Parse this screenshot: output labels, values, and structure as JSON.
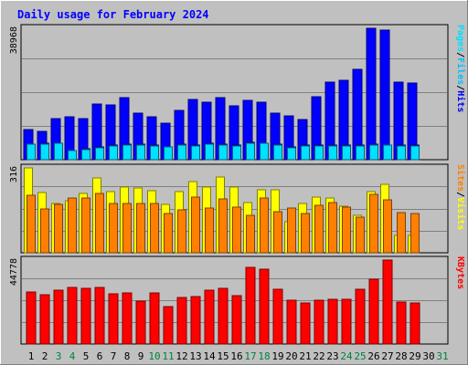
{
  "chart_data": {
    "type": "bar",
    "title": "Daily usage for February 2024",
    "x": [
      "1",
      "2",
      "3",
      "4",
      "5",
      "6",
      "7",
      "8",
      "9",
      "10",
      "11",
      "12",
      "13",
      "14",
      "15",
      "16",
      "17",
      "18",
      "19",
      "20",
      "21",
      "22",
      "23",
      "24",
      "25",
      "26",
      "27",
      "28",
      "29",
      "30",
      "31"
    ],
    "weekend_days": [
      "3",
      "4",
      "10",
      "11",
      "17",
      "18",
      "24",
      "25",
      "31"
    ],
    "panels": [
      {
        "max_label": "38968",
        "ylim": [
          0,
          38968
        ],
        "right_label": [
          "Pages",
          "/",
          "Files",
          "/",
          "Hits"
        ],
        "series": [
          {
            "name": "Hits",
            "color": "#0000ff",
            "values": [
              9000,
              8400,
              12100,
              12700,
              12300,
              16500,
              16300,
              18500,
              13800,
              12800,
              10700,
              14500,
              17900,
              17000,
              18400,
              15900,
              17500,
              17000,
              13800,
              13100,
              11800,
              18700,
              23100,
              23500,
              26700,
              38968,
              38500,
              23100,
              22800,
              0,
              0
            ]
          },
          {
            "name": "Files",
            "color": "#00c0ff",
            "values": [
              4700,
              4800,
              5000,
              2800,
              3300,
              3800,
              4300,
              4600,
              4600,
              4200,
              3900,
              4500,
              4300,
              4900,
              4500,
              4300,
              5100,
              5000,
              4600,
              3800,
              4300,
              4300,
              4300,
              4300,
              4300,
              4500,
              4400,
              4200,
              4300,
              0,
              0
            ]
          },
          {
            "name": "Pages",
            "color": "#00e0ff",
            "values": [
              4500,
              4500,
              4800,
              2600,
              3100,
              3600,
              4100,
              4400,
              4400,
              4000,
              3700,
              4300,
              4100,
              4700,
              4300,
              4100,
              4900,
              4800,
              4400,
              3600,
              4100,
              4100,
              4100,
              4100,
              4100,
              4300,
              4200,
              4000,
              4100,
              0,
              0
            ]
          }
        ]
      },
      {
        "max_label": "316",
        "ylim": [
          0,
          316
        ],
        "right_label": [
          "Sites",
          "/",
          "Visits"
        ],
        "series": [
          {
            "name": "Visits",
            "color": "#ffff00",
            "values": [
              316,
              223,
              183,
              193,
              221,
              280,
              227,
              245,
              240,
              231,
              180,
              226,
              266,
              244,
              282,
              245,
              186,
              235,
              235,
              115,
              183,
              206,
              203,
              173,
              139,
              226,
              254,
              65,
              65,
              0,
              0
            ]
          },
          {
            "name": "Sites",
            "color": "#ff8000",
            "values": [
              215,
              163,
              180,
              203,
              205,
              220,
              183,
              182,
              183,
              185,
              145,
              160,
              207,
              165,
              200,
              169,
              140,
              204,
              154,
              167,
              145,
              175,
              187,
              170,
              133,
              216,
              196,
              148,
              146,
              0,
              0
            ]
          }
        ]
      },
      {
        "max_label": "44778",
        "ylim": [
          0,
          44778
        ],
        "right_label": [
          "KBytes"
        ],
        "series": [
          {
            "name": "KBytes",
            "color": "#ff0000",
            "values": [
              27800,
              26300,
              28800,
              30300,
              29700,
              30200,
              26700,
              27200,
              22900,
              27100,
              19800,
              24800,
              25200,
              28500,
              29700,
              25800,
              40800,
              39800,
              29300,
              23600,
              21800,
              23400,
              23900,
              23800,
              29300,
              34500,
              44778,
              22600,
              22000,
              0,
              0
            ]
          }
        ]
      }
    ]
  }
}
